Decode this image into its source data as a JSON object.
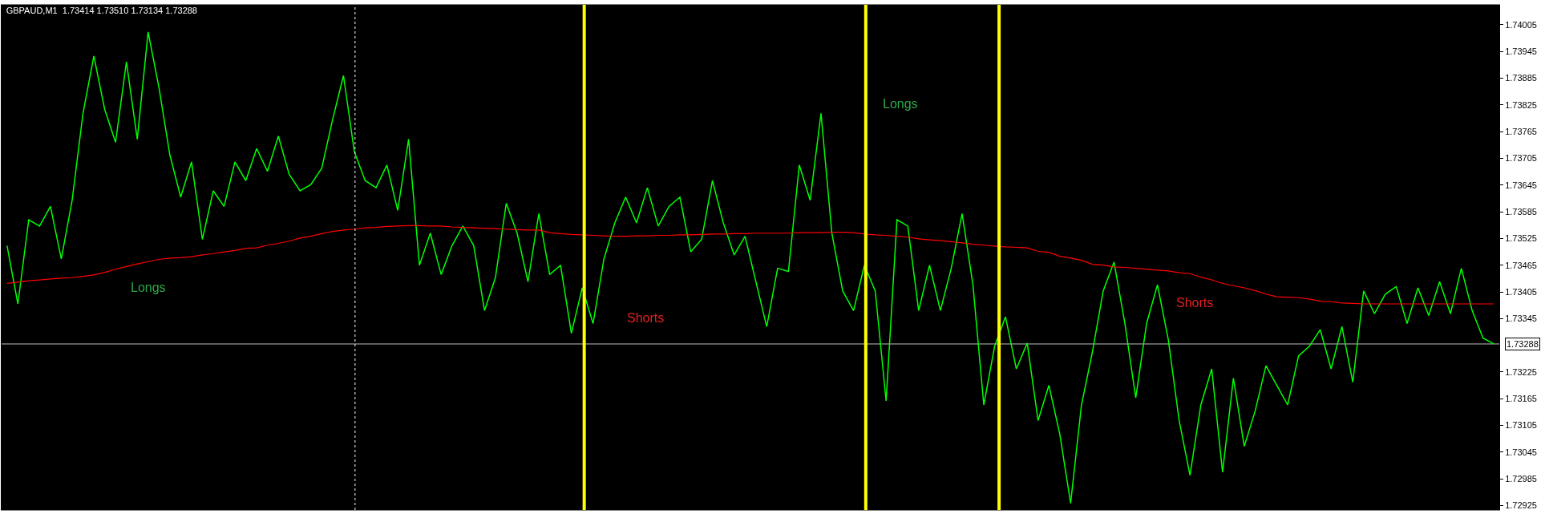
{
  "chart_data": {
    "type": "line",
    "title": "GBPAUD,M1  1.73414 1.73510 1.73134 1.73288",
    "categories": [
      null,
      null,
      null,
      null,
      null,
      null,
      null,
      null,
      null,
      null,
      null,
      null,
      null,
      null,
      null,
      null,
      null,
      null,
      null,
      null,
      null,
      null,
      null,
      null,
      null,
      null,
      null,
      null,
      null,
      null,
      null,
      null,
      null,
      null,
      null,
      null,
      null,
      null,
      null,
      null,
      null,
      null,
      null,
      null,
      null,
      null,
      null,
      null,
      null,
      null,
      null,
      null,
      null,
      null,
      null,
      null,
      null,
      null,
      null,
      null,
      null,
      null,
      null,
      null,
      null,
      null,
      null,
      null,
      null,
      null,
      null,
      null,
      null,
      null,
      null,
      null,
      null,
      null,
      null,
      null,
      null,
      null,
      null,
      null,
      null,
      null,
      null,
      null,
      null,
      null,
      null,
      null,
      null,
      null,
      null,
      null,
      null,
      null,
      null,
      null,
      null,
      null,
      null,
      null,
      null,
      null,
      null,
      null,
      null,
      null,
      null,
      null,
      null,
      null,
      null,
      null,
      null,
      null,
      null,
      null,
      null,
      null,
      null,
      null,
      null,
      null,
      null,
      null,
      null,
      null,
      null,
      null,
      null,
      null,
      null,
      null,
      null,
      null
    ],
    "series": [
      {
        "color": "#00ff00",
        "values": [
          1.73509,
          1.73378,
          1.73567,
          1.73553,
          1.73597,
          1.73479,
          1.73611,
          1.73806,
          1.73935,
          1.73815,
          1.73741,
          1.73922,
          1.73748,
          1.73989,
          1.73864,
          1.73713,
          1.73618,
          1.73697,
          1.73523,
          1.73632,
          1.73597,
          1.73697,
          1.73655,
          1.73727,
          1.73676,
          1.73755,
          1.73669,
          1.73632,
          1.73646,
          1.73683,
          1.73792,
          1.73891,
          1.7372,
          1.73655,
          1.73639,
          1.7369,
          1.73588,
          1.73748,
          1.73465,
          1.73537,
          1.73444,
          1.73509,
          1.73553,
          1.73509,
          1.73363,
          1.73437,
          1.73604,
          1.73537,
          1.73428,
          1.73581,
          1.73444,
          1.73465,
          1.73312,
          1.73414,
          1.73334,
          1.73479,
          1.7356,
          1.73618,
          1.7356,
          1.73639,
          1.73553,
          1.73597,
          1.73618,
          1.73495,
          1.73523,
          1.73655,
          1.7356,
          1.73488,
          1.7353,
          1.73428,
          1.73327,
          1.73458,
          1.73451,
          1.7369,
          1.73611,
          1.73806,
          1.73537,
          1.73407,
          1.73363,
          1.73465,
          1.73407,
          1.7316,
          1.73567,
          1.73553,
          1.73363,
          1.73465,
          1.73363,
          1.73458,
          1.73581,
          1.73421,
          1.73151,
          1.73283,
          1.73349,
          1.73232,
          1.7329,
          1.73116,
          1.73195,
          1.73086,
          1.7293,
          1.73151,
          1.73269,
          1.73407,
          1.73472,
          1.73334,
          1.73167,
          1.73334,
          1.73421,
          1.73298,
          1.73116,
          1.72993,
          1.73151,
          1.73232,
          1.73,
          1.73211,
          1.73058,
          1.73137,
          1.73239,
          1.73195,
          1.73151,
          1.73261,
          1.73283,
          1.7332,
          1.73232,
          1.73327,
          1.73202,
          1.73407,
          1.73356,
          1.734,
          1.73417,
          1.73334,
          1.73414,
          1.73352,
          1.73428,
          1.73356,
          1.73458,
          1.73363,
          1.73301,
          1.73288
        ]
      },
      {
        "color": "#ff0000",
        "values": [
          1.73424,
          1.73427,
          1.7343,
          1.73432,
          1.73434,
          1.73436,
          1.73437,
          1.7344,
          1.73443,
          1.73449,
          1.73456,
          1.73462,
          1.73468,
          1.73473,
          1.73478,
          1.73481,
          1.73482,
          1.73484,
          1.73488,
          1.73491,
          1.73495,
          1.73498,
          1.73503,
          1.73504,
          1.7351,
          1.73514,
          1.73519,
          1.73526,
          1.7353,
          1.73536,
          1.73541,
          1.73544,
          1.73546,
          1.73549,
          1.7355,
          1.73552,
          1.73553,
          1.73554,
          1.73554,
          1.73553,
          1.73553,
          1.73551,
          1.7355,
          1.73549,
          1.73548,
          1.73547,
          1.73546,
          1.73545,
          1.73544,
          1.73544,
          1.73538,
          1.73536,
          1.73534,
          1.73533,
          1.73532,
          1.73531,
          1.7353,
          1.7353,
          1.73531,
          1.73531,
          1.73532,
          1.73532,
          1.73533,
          1.73533,
          1.73534,
          1.73535,
          1.73535,
          1.73536,
          1.73536,
          1.73537,
          1.73537,
          1.73537,
          1.73537,
          1.73538,
          1.73538,
          1.73538,
          1.73539,
          1.73539,
          1.73538,
          1.73535,
          1.73533,
          1.73532,
          1.7353,
          1.73528,
          1.73524,
          1.73522,
          1.7352,
          1.73518,
          1.73515,
          1.73512,
          1.7351,
          1.73508,
          1.73506,
          1.73505,
          1.73504,
          1.73496,
          1.73494,
          1.73485,
          1.73481,
          1.73476,
          1.73467,
          1.73465,
          1.73461,
          1.7346,
          1.73458,
          1.73456,
          1.73454,
          1.73452,
          1.73448,
          1.73446,
          1.73438,
          1.73432,
          1.73424,
          1.73419,
          1.73414,
          1.73408,
          1.734,
          1.73394,
          1.73393,
          1.73392,
          1.73389,
          1.73384,
          1.73383,
          1.7338,
          1.73379,
          1.73378,
          1.73378,
          1.73378,
          1.73378,
          1.73378,
          1.73378,
          1.73378,
          1.73378,
          1.73378,
          1.73378,
          1.73378,
          1.73378,
          1.73378
        ]
      }
    ],
    "ylim": [
      1.72915,
      1.7405
    ],
    "yticks": [
      1.74005,
      1.73945,
      1.73885,
      1.73825,
      1.73765,
      1.73705,
      1.73645,
      1.73585,
      1.73525,
      1.73465,
      1.73405,
      1.73345,
      1.73225,
      1.73165,
      1.73105,
      1.73045,
      1.72985,
      1.72925
    ],
    "ref_lines": [
      {
        "axis": "y",
        "value": 1.73288,
        "label": "1.73288",
        "color": "#c0c0c0"
      }
    ],
    "annotations": [
      "Longs",
      "Shorts",
      "Longs",
      "Shorts"
    ],
    "tick_labels": "y",
    "grid": false,
    "marker": "none",
    "line_style": "solid"
  }
}
